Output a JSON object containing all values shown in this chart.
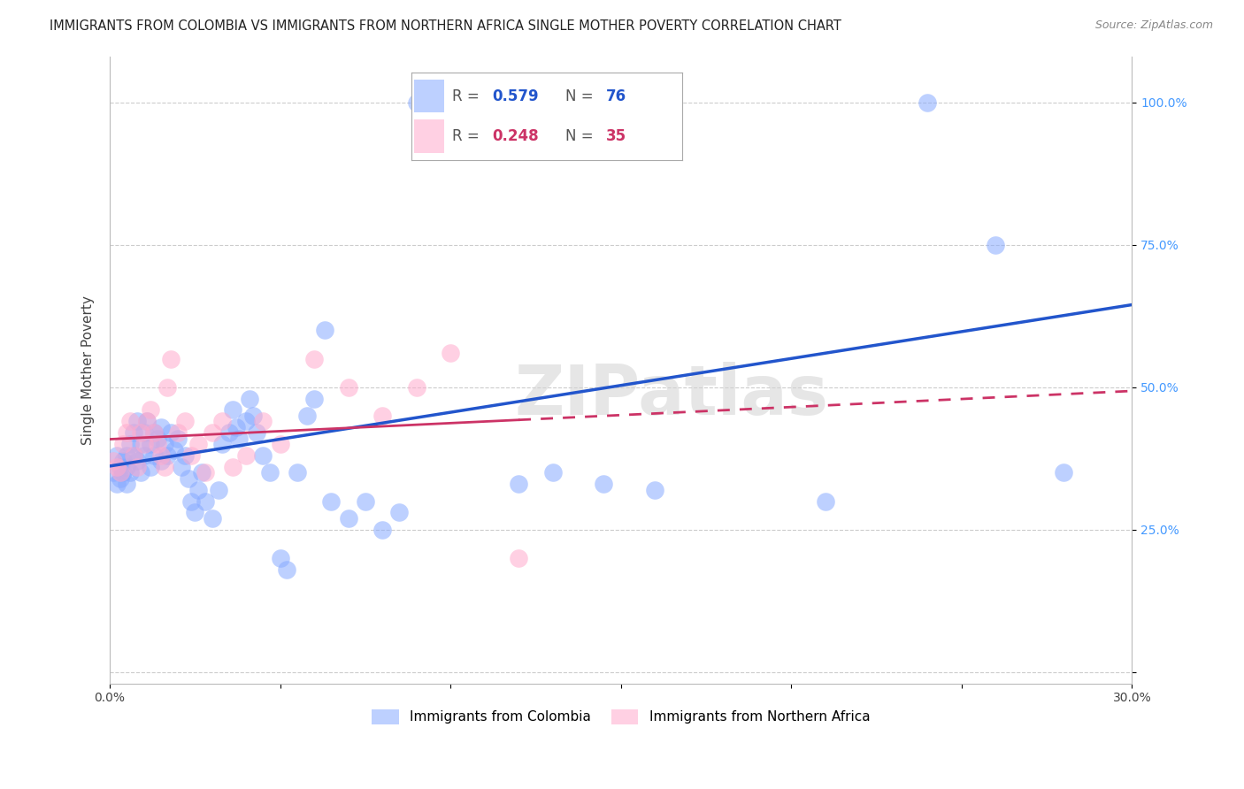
{
  "title": "IMMIGRANTS FROM COLOMBIA VS IMMIGRANTS FROM NORTHERN AFRICA SINGLE MOTHER POVERTY CORRELATION CHART",
  "source": "Source: ZipAtlas.com",
  "ylabel": "Single Mother Poverty",
  "xlim": [
    0.0,
    0.3
  ],
  "ylim": [
    -0.02,
    1.08
  ],
  "colombia_color": "#88aaff",
  "north_africa_color": "#ffaacc",
  "colombia_trend_color": "#2255cc",
  "north_africa_trend_color": "#cc3366",
  "colombia_R": 0.579,
  "colombia_N": 76,
  "north_africa_R": 0.248,
  "north_africa_N": 35,
  "colombia_x": [
    0.001,
    0.002,
    0.002,
    0.003,
    0.003,
    0.004,
    0.004,
    0.005,
    0.005,
    0.005,
    0.006,
    0.006,
    0.007,
    0.007,
    0.008,
    0.008,
    0.009,
    0.009,
    0.01,
    0.01,
    0.011,
    0.012,
    0.012,
    0.013,
    0.013,
    0.014,
    0.015,
    0.015,
    0.016,
    0.017,
    0.018,
    0.019,
    0.02,
    0.021,
    0.022,
    0.023,
    0.024,
    0.025,
    0.026,
    0.027,
    0.028,
    0.03,
    0.032,
    0.033,
    0.035,
    0.036,
    0.037,
    0.038,
    0.04,
    0.041,
    0.042,
    0.043,
    0.045,
    0.047,
    0.05,
    0.052,
    0.055,
    0.058,
    0.06,
    0.063,
    0.065,
    0.07,
    0.075,
    0.08,
    0.085,
    0.09,
    0.1,
    0.11,
    0.12,
    0.13,
    0.145,
    0.16,
    0.21,
    0.24,
    0.26,
    0.28
  ],
  "colombia_y": [
    0.35,
    0.38,
    0.33,
    0.36,
    0.34,
    0.37,
    0.35,
    0.38,
    0.33,
    0.36,
    0.4,
    0.35,
    0.42,
    0.38,
    0.44,
    0.37,
    0.4,
    0.35,
    0.42,
    0.38,
    0.44,
    0.4,
    0.36,
    0.42,
    0.38,
    0.41,
    0.43,
    0.37,
    0.4,
    0.38,
    0.42,
    0.39,
    0.41,
    0.36,
    0.38,
    0.34,
    0.3,
    0.28,
    0.32,
    0.35,
    0.3,
    0.27,
    0.32,
    0.4,
    0.42,
    0.46,
    0.43,
    0.41,
    0.44,
    0.48,
    0.45,
    0.42,
    0.38,
    0.35,
    0.2,
    0.18,
    0.35,
    0.45,
    0.48,
    0.6,
    0.3,
    0.27,
    0.3,
    0.25,
    0.28,
    1.0,
    1.0,
    0.92,
    0.33,
    0.35,
    0.33,
    0.32,
    0.3,
    1.0,
    0.75,
    0.35
  ],
  "north_africa_x": [
    0.001,
    0.002,
    0.003,
    0.004,
    0.005,
    0.006,
    0.007,
    0.008,
    0.009,
    0.01,
    0.011,
    0.012,
    0.013,
    0.014,
    0.015,
    0.016,
    0.017,
    0.018,
    0.02,
    0.022,
    0.024,
    0.026,
    0.028,
    0.03,
    0.033,
    0.036,
    0.04,
    0.045,
    0.05,
    0.06,
    0.07,
    0.08,
    0.09,
    0.1,
    0.12
  ],
  "north_africa_y": [
    0.37,
    0.36,
    0.35,
    0.4,
    0.42,
    0.44,
    0.38,
    0.36,
    0.42,
    0.4,
    0.44,
    0.46,
    0.42,
    0.4,
    0.38,
    0.36,
    0.5,
    0.55,
    0.42,
    0.44,
    0.38,
    0.4,
    0.35,
    0.42,
    0.44,
    0.36,
    0.38,
    0.44,
    0.4,
    0.55,
    0.5,
    0.45,
    0.5,
    0.56,
    0.2
  ],
  "watermark": "ZIPatlas",
  "background_color": "#ffffff",
  "grid_color": "#cccccc",
  "title_fontsize": 10.5,
  "axis_label_fontsize": 11,
  "tick_fontsize": 10,
  "right_tick_color": "#4499ff"
}
